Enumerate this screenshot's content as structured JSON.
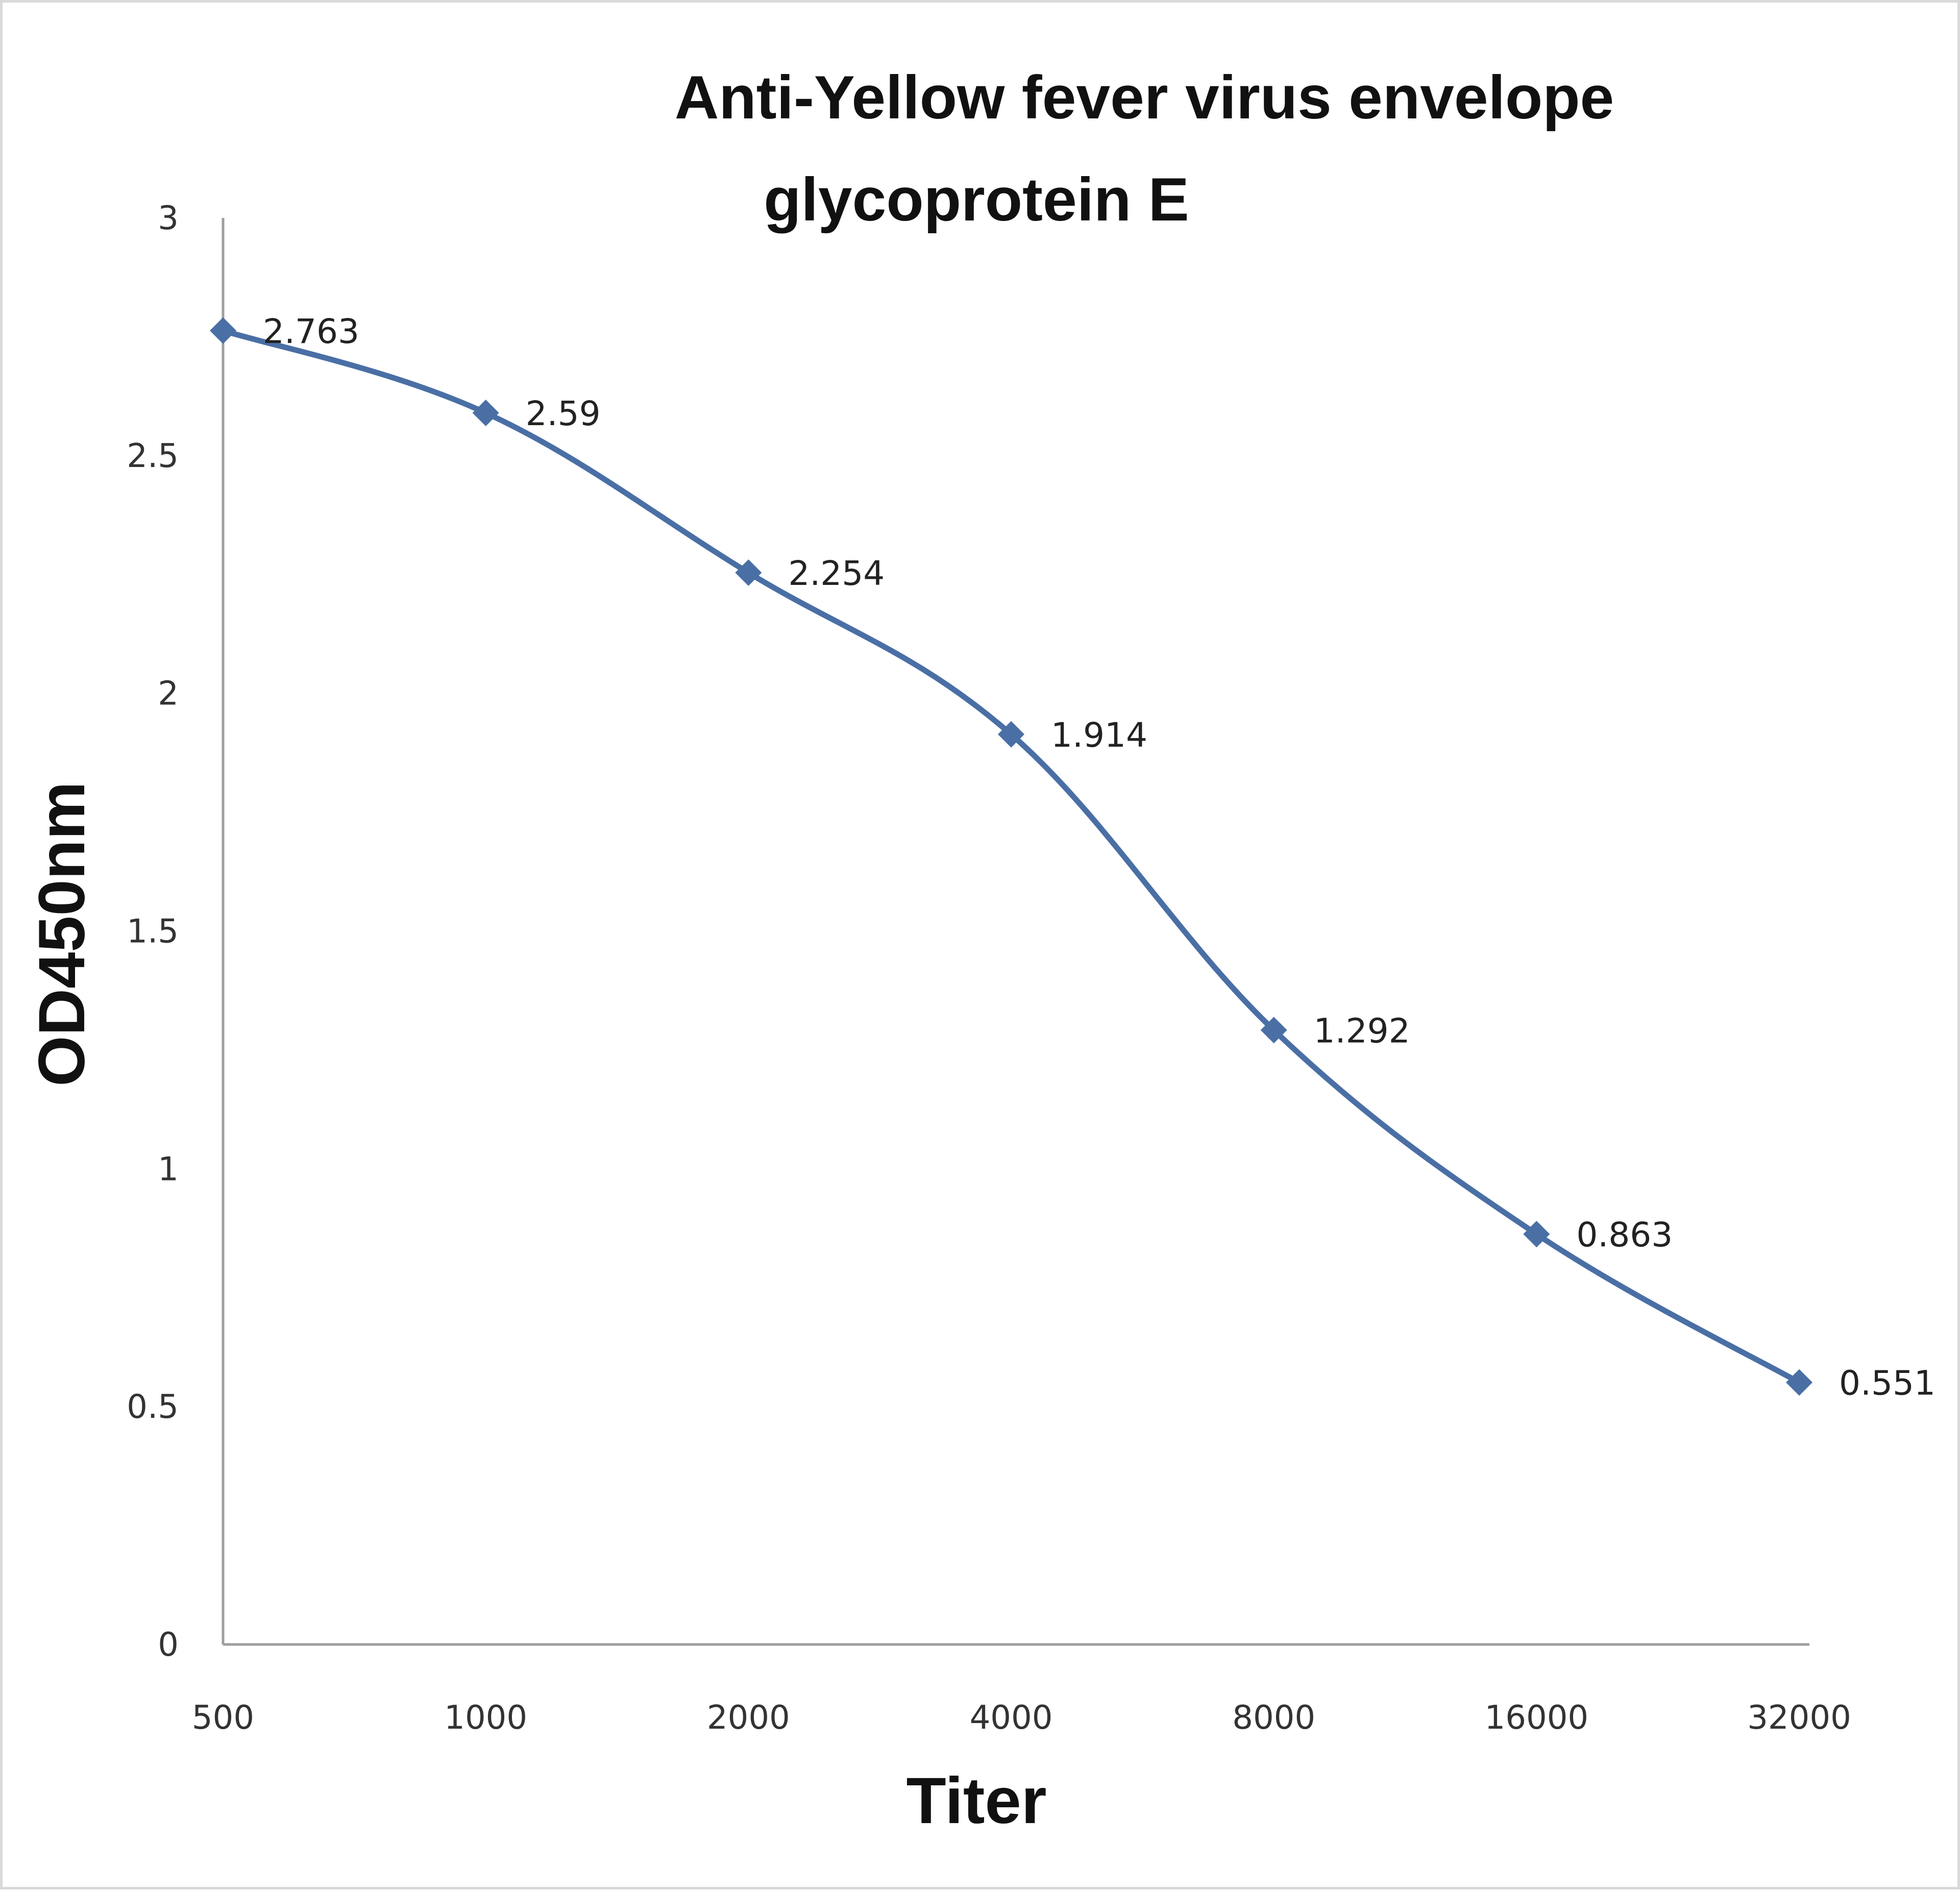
{
  "chart_data": {
    "type": "line",
    "title_lines": [
      "Anti-Yellow fever virus envelope",
      "glycoprotein E"
    ],
    "xlabel": "Titer",
    "ylabel": "OD450nm",
    "categories": [
      "500",
      "1000",
      "2000",
      "4000",
      "8000",
      "16000",
      "32000"
    ],
    "series": [
      {
        "values": [
          2.763,
          2.59,
          2.254,
          1.914,
          1.292,
          0.863,
          0.551
        ],
        "labels": [
          "2.763",
          "2.59",
          "2.254",
          "1.914",
          "1.292",
          "0.863",
          "0.551"
        ],
        "color": "#4a6fa5",
        "marker": "diamond",
        "smooth": true
      }
    ],
    "ylim": [
      0,
      3
    ],
    "yticks": [
      0,
      0.5,
      1,
      1.5,
      2,
      2.5,
      3
    ],
    "ytick_labels": [
      "0",
      "0.5",
      "1",
      "1.5",
      "2",
      "2.5",
      "3"
    ],
    "grid": false,
    "legend": "none"
  }
}
